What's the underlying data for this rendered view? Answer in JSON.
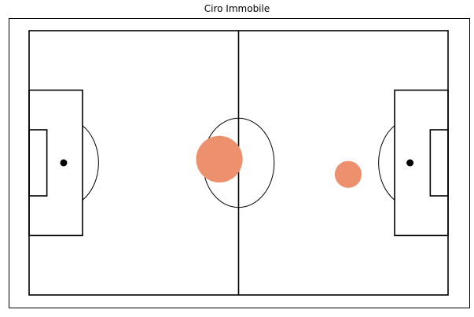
{
  "chart_data": {
    "type": "scatter",
    "title": "Ciro Immobile",
    "xlabel": "",
    "ylabel": "",
    "xlim": [
      0,
      120
    ],
    "ylim": [
      0,
      80
    ],
    "grid": false,
    "marker_color": "#EC906D",
    "line_color": "#000000",
    "points": [
      {
        "x": 54.5,
        "y": 41.1,
        "size": 3
      },
      {
        "x": 91.4,
        "y": 36.5,
        "size": 1
      }
    ]
  }
}
